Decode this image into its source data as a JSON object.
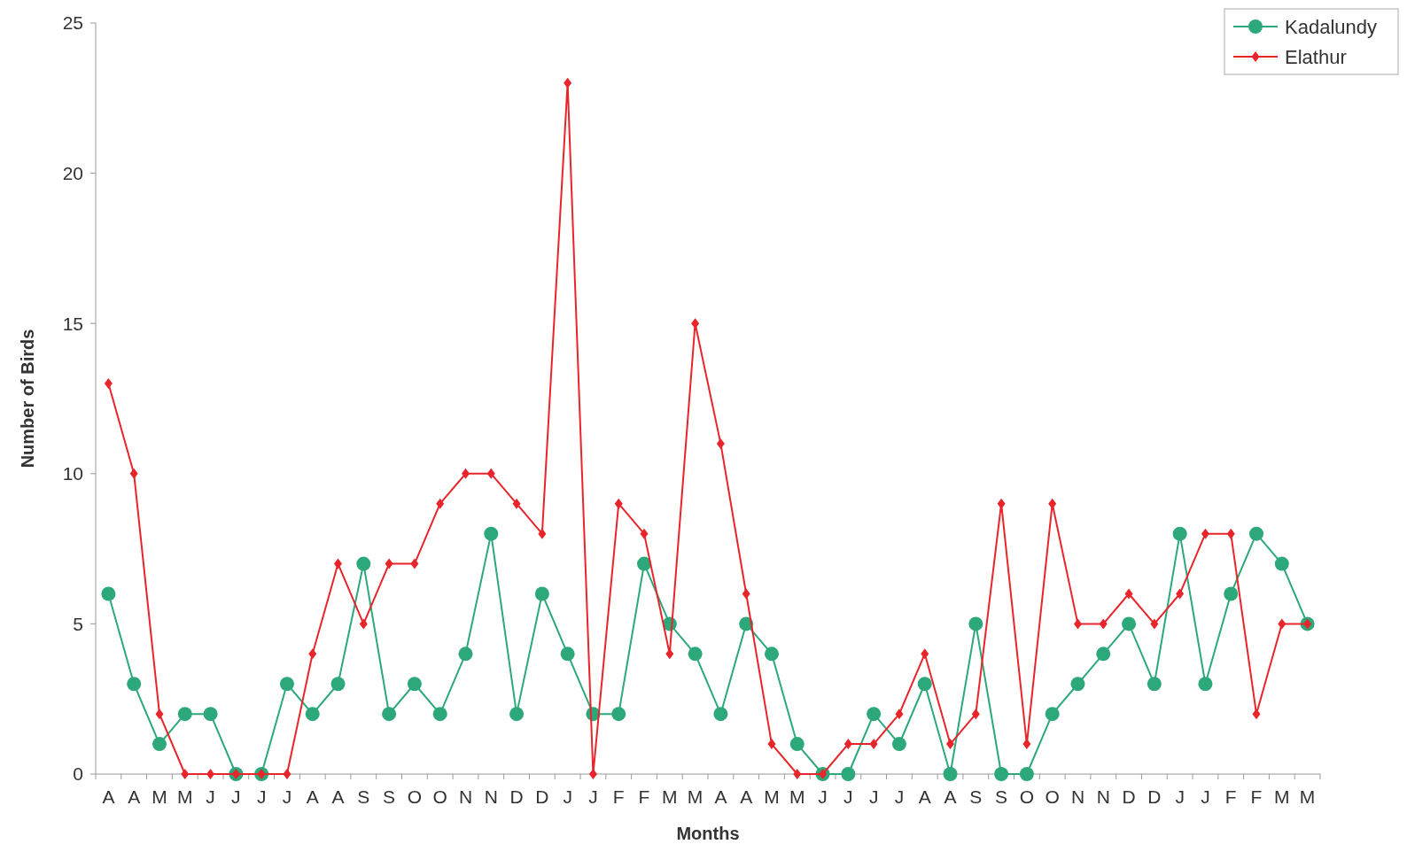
{
  "chart_data": {
    "type": "line",
    "xlabel": "Months",
    "ylabel": "Number of Birds",
    "categories": [
      "A",
      "A",
      "M",
      "M",
      "J",
      "J",
      "J",
      "J",
      "A",
      "A",
      "S",
      "S",
      "O",
      "O",
      "N",
      "N",
      "D",
      "D",
      "J",
      "J",
      "F",
      "F",
      "M",
      "M",
      "A",
      "A",
      "M",
      "M",
      "J",
      "J",
      "J",
      "J",
      "A",
      "A",
      "S",
      "S",
      "O",
      "O",
      "N",
      "N",
      "D",
      "D",
      "J",
      "J",
      "F",
      "F",
      "M",
      "M"
    ],
    "series": [
      {
        "name": "Kadalundy",
        "color": "#2ca87a",
        "marker": "circle",
        "values": [
          6,
          3,
          1,
          2,
          2,
          0,
          0,
          3,
          2,
          3,
          7,
          2,
          3,
          2,
          4,
          8,
          2,
          6,
          4,
          2,
          2,
          7,
          5,
          4,
          2,
          5,
          4,
          1,
          0,
          0,
          2,
          1,
          3,
          0,
          5,
          0,
          0,
          2,
          3,
          4,
          5,
          3,
          8,
          3,
          6,
          8,
          7,
          5
        ]
      },
      {
        "name": "Elathur",
        "color": "#e8252b",
        "marker": "diamond",
        "values": [
          13,
          10,
          2,
          0,
          0,
          0,
          0,
          0,
          4,
          7,
          5,
          7,
          7,
          9,
          10,
          10,
          9,
          8,
          23,
          0,
          9,
          8,
          4,
          15,
          11,
          6,
          1,
          0,
          0,
          1,
          1,
          2,
          4,
          1,
          2,
          9,
          1,
          9,
          5,
          5,
          6,
          5,
          6,
          8,
          8,
          2,
          5,
          5
        ]
      }
    ],
    "ylim": [
      0,
      25
    ],
    "yticks": [
      0,
      5,
      10,
      15,
      20,
      25
    ],
    "grid": false,
    "legend": "top right",
    "line_style": "solid"
  }
}
